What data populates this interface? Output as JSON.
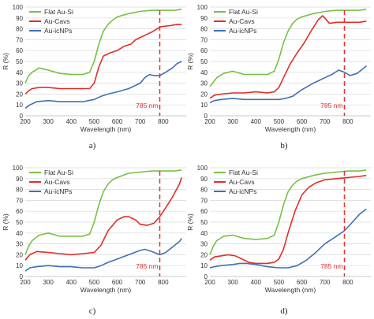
{
  "colors": {
    "flat": "#77c043",
    "cavs": "#e02e28",
    "icnps": "#3f6fb5",
    "marker": "#e03030"
  },
  "chart_data": [
    {
      "type": "line",
      "panel": "a)",
      "xlabel": "Wavelength (nm)",
      "ylabel": "R (%)",
      "xlim": [
        200,
        900
      ],
      "ylim": [
        0,
        100
      ],
      "xticks": [
        200,
        300,
        400,
        500,
        600,
        700,
        800
      ],
      "yticks": [
        0,
        10,
        20,
        30,
        40,
        50,
        60,
        70,
        80,
        90,
        100
      ],
      "legend_position": "top-left",
      "marker_line": {
        "x": 785,
        "label": "785 nm"
      },
      "series": [
        {
          "name": "Flat Au-Si",
          "color": "flat",
          "x": [
            200,
            215,
            230,
            260,
            300,
            350,
            400,
            450,
            480,
            500,
            520,
            540,
            560,
            580,
            600,
            650,
            700,
            750,
            800,
            850,
            880
          ],
          "y": [
            30,
            37,
            40,
            44,
            42,
            39,
            38,
            38,
            40,
            50,
            66,
            78,
            84,
            88,
            91,
            94,
            96,
            97,
            97,
            97,
            98
          ]
        },
        {
          "name": "Au-Cavs",
          "color": "cavs",
          "x": [
            200,
            215,
            230,
            260,
            300,
            350,
            400,
            450,
            480,
            500,
            520,
            540,
            570,
            600,
            630,
            660,
            680,
            700,
            720,
            750,
            790,
            830,
            860,
            880
          ],
          "y": [
            20,
            23,
            25,
            26,
            26,
            25,
            25,
            25,
            25,
            30,
            45,
            55,
            58,
            60,
            64,
            66,
            70,
            72,
            74,
            77,
            82,
            83,
            84,
            84
          ]
        },
        {
          "name": "Au-icNPs",
          "color": "icnps",
          "x": [
            200,
            220,
            250,
            300,
            350,
            400,
            450,
            500,
            530,
            560,
            600,
            650,
            700,
            720,
            740,
            760,
            785,
            810,
            840,
            860,
            880
          ],
          "y": [
            7,
            10,
            13,
            14,
            13,
            13,
            13,
            15,
            18,
            20,
            22,
            25,
            30,
            35,
            38,
            37,
            37,
            40,
            44,
            48,
            50
          ]
        }
      ]
    },
    {
      "type": "line",
      "panel": "b)",
      "xlabel": "Wavelength (nm)",
      "ylabel": "R (%)",
      "xlim": [
        200,
        900
      ],
      "ylim": [
        0,
        100
      ],
      "xticks": [
        200,
        300,
        400,
        500,
        600,
        700,
        800
      ],
      "yticks": [
        0,
        10,
        20,
        30,
        40,
        50,
        60,
        70,
        80,
        90,
        100
      ],
      "legend_position": "top-left",
      "marker_line": {
        "x": 785,
        "label": "785 nm"
      },
      "series": [
        {
          "name": "Flat Au-Si",
          "color": "flat",
          "x": [
            200,
            215,
            230,
            260,
            300,
            350,
            400,
            450,
            480,
            500,
            520,
            540,
            560,
            580,
            600,
            650,
            700,
            750,
            800,
            850,
            880
          ],
          "y": [
            27,
            31,
            35,
            39,
            41,
            38,
            38,
            38,
            41,
            52,
            67,
            78,
            85,
            89,
            91,
            94,
            96,
            97,
            97,
            97,
            98
          ]
        },
        {
          "name": "Au-Cavs",
          "color": "cavs",
          "x": [
            200,
            220,
            250,
            300,
            350,
            400,
            450,
            480,
            500,
            520,
            550,
            580,
            610,
            640,
            670,
            690,
            700,
            720,
            750,
            800,
            850,
            880
          ],
          "y": [
            16,
            19,
            20,
            21,
            21,
            22,
            21,
            22,
            26,
            35,
            48,
            58,
            67,
            78,
            88,
            92,
            90,
            85,
            86,
            86,
            86,
            87
          ]
        },
        {
          "name": "Au-icNPs",
          "color": "icnps",
          "x": [
            200,
            220,
            250,
            300,
            350,
            400,
            450,
            500,
            530,
            560,
            600,
            650,
            700,
            730,
            760,
            785,
            810,
            840,
            870,
            880
          ],
          "y": [
            12,
            14,
            15,
            16,
            15,
            15,
            15,
            15,
            16,
            18,
            24,
            30,
            35,
            38,
            42,
            40,
            37,
            39,
            44,
            46
          ]
        }
      ]
    },
    {
      "type": "line",
      "panel": "c)",
      "xlabel": "Wavelength (nm)",
      "ylabel": "R (%)",
      "xlim": [
        200,
        900
      ],
      "ylim": [
        0,
        100
      ],
      "xticks": [
        200,
        300,
        400,
        500,
        600,
        700,
        800
      ],
      "yticks": [
        0,
        10,
        20,
        30,
        40,
        50,
        60,
        70,
        80,
        90,
        100
      ],
      "legend_position": "top-left",
      "marker_line": {
        "x": 785,
        "label": "785 nm"
      },
      "series": [
        {
          "name": "Flat Au-Si",
          "color": "flat",
          "x": [
            200,
            215,
            230,
            260,
            300,
            350,
            400,
            450,
            480,
            500,
            520,
            540,
            560,
            580,
            600,
            650,
            700,
            750,
            800,
            850,
            880
          ],
          "y": [
            20,
            28,
            33,
            38,
            40,
            37,
            37,
            37,
            39,
            50,
            66,
            78,
            85,
            89,
            91,
            95,
            96,
            97,
            97,
            97,
            98
          ]
        },
        {
          "name": "Au-Cavs",
          "color": "cavs",
          "x": [
            200,
            220,
            250,
            300,
            350,
            400,
            450,
            500,
            530,
            560,
            600,
            630,
            650,
            680,
            700,
            730,
            760,
            785,
            810,
            840,
            870,
            880
          ],
          "y": [
            15,
            20,
            23,
            22,
            21,
            20,
            21,
            22,
            29,
            42,
            52,
            55,
            55,
            52,
            48,
            47,
            49,
            55,
            63,
            73,
            85,
            91
          ]
        },
        {
          "name": "Au-icNPs",
          "color": "icnps",
          "x": [
            200,
            220,
            250,
            300,
            350,
            400,
            450,
            500,
            530,
            560,
            600,
            650,
            700,
            720,
            750,
            785,
            810,
            840,
            870,
            880
          ],
          "y": [
            5,
            8,
            9,
            10,
            9,
            9,
            8,
            8,
            10,
            13,
            16,
            20,
            24,
            25,
            23,
            20,
            22,
            27,
            32,
            35
          ]
        }
      ]
    },
    {
      "type": "line",
      "panel": "d)",
      "xlabel": "Wavelength (nm)",
      "ylabel": "R (%)",
      "xlim": [
        200,
        900
      ],
      "ylim": [
        0,
        100
      ],
      "xticks": [
        200,
        300,
        400,
        500,
        600,
        700,
        800
      ],
      "yticks": [
        0,
        10,
        20,
        30,
        40,
        50,
        60,
        70,
        80,
        90,
        100
      ],
      "legend_position": "top-left",
      "marker_line": {
        "x": 785,
        "label": "785 nm"
      },
      "series": [
        {
          "name": "Flat Au-Si",
          "color": "flat",
          "x": [
            200,
            215,
            230,
            260,
            300,
            350,
            400,
            450,
            480,
            500,
            520,
            540,
            560,
            580,
            600,
            650,
            700,
            750,
            800,
            850,
            880
          ],
          "y": [
            20,
            28,
            33,
            37,
            38,
            35,
            34,
            35,
            38,
            50,
            66,
            78,
            84,
            88,
            90,
            93,
            95,
            96,
            97,
            97,
            98
          ]
        },
        {
          "name": "Au-Cavs",
          "color": "cavs",
          "x": [
            200,
            220,
            250,
            280,
            310,
            340,
            370,
            400,
            450,
            480,
            500,
            520,
            540,
            570,
            600,
            630,
            660,
            700,
            750,
            800,
            850,
            880
          ],
          "y": [
            15,
            18,
            19,
            20,
            19,
            16,
            13,
            12,
            12,
            13,
            16,
            25,
            40,
            60,
            75,
            82,
            86,
            89,
            90,
            91,
            92,
            93
          ]
        },
        {
          "name": "Au-icNPs",
          "color": "icnps",
          "x": [
            200,
            220,
            250,
            300,
            330,
            360,
            400,
            450,
            500,
            540,
            580,
            620,
            660,
            700,
            750,
            785,
            820,
            850,
            880
          ],
          "y": [
            8,
            9,
            10,
            11,
            12,
            12,
            11,
            9,
            8,
            8,
            10,
            15,
            22,
            30,
            37,
            42,
            50,
            57,
            62
          ]
        }
      ]
    }
  ]
}
